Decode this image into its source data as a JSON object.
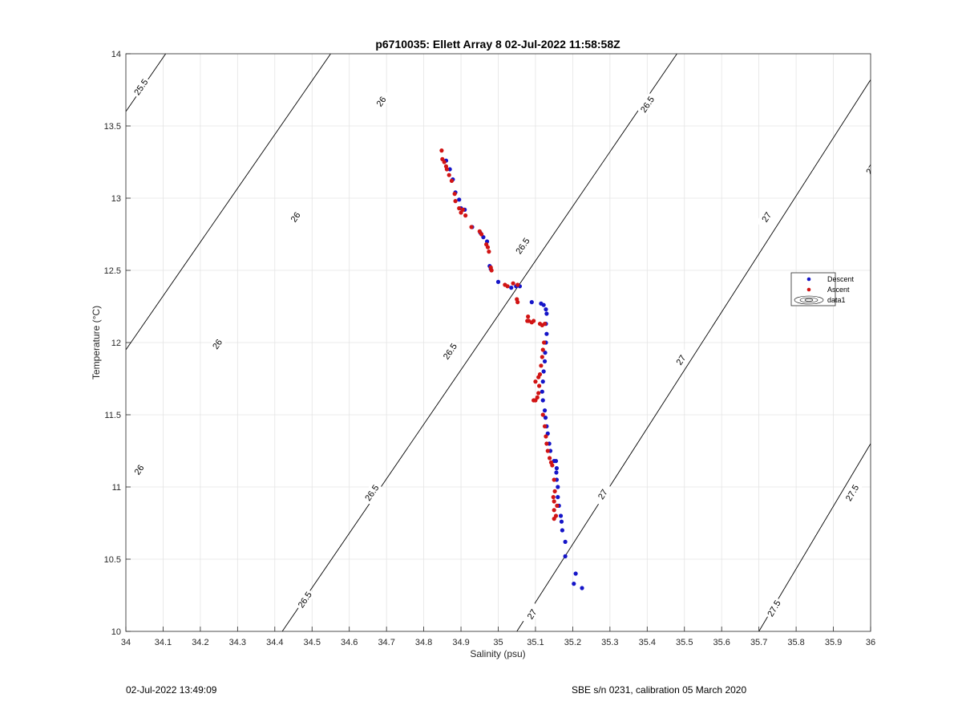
{
  "chart_data": {
    "type": "scatter",
    "title": "p6710035: Ellett Array 8 02-Jul-2022 11:58:58Z",
    "xlabel": "Salinity (psu)",
    "ylabel": "Temperature (°C)",
    "xlim": [
      34,
      36
    ],
    "ylim": [
      10,
      14
    ],
    "xticks": [
      "34",
      "34.1",
      "34.2",
      "34.3",
      "34.4",
      "34.5",
      "34.6",
      "34.7",
      "34.8",
      "34.9",
      "35",
      "35.1",
      "35.2",
      "35.3",
      "35.4",
      "35.5",
      "35.6",
      "35.7",
      "35.8",
      "35.9",
      "36"
    ],
    "yticks": [
      "10",
      "10.5",
      "11",
      "11.5",
      "12",
      "12.5",
      "13",
      "13.5",
      "14"
    ],
    "grid": true,
    "legend": {
      "placement": "right",
      "entries": [
        {
          "name": "Descent",
          "color": "#1515c8",
          "kind": "dot"
        },
        {
          "name": "Ascent",
          "color": "#d11414",
          "kind": "dot"
        },
        {
          "name": "data1",
          "color": "#000000",
          "kind": "contour"
        }
      ]
    },
    "series": [
      {
        "name": "Descent",
        "color": "#1515c8",
        "points": [
          [
            35.225,
            10.3
          ],
          [
            35.203,
            10.33
          ],
          [
            35.208,
            10.4
          ],
          [
            35.18,
            10.52
          ],
          [
            35.18,
            10.62
          ],
          [
            35.172,
            10.7
          ],
          [
            35.17,
            10.76
          ],
          [
            35.168,
            10.8
          ],
          [
            35.163,
            10.87
          ],
          [
            35.16,
            10.93
          ],
          [
            35.16,
            11.0
          ],
          [
            35.157,
            11.05
          ],
          [
            35.156,
            11.1
          ],
          [
            35.157,
            11.13
          ],
          [
            35.155,
            11.18
          ],
          [
            35.15,
            11.18
          ],
          [
            35.14,
            11.25
          ],
          [
            35.137,
            11.3
          ],
          [
            35.133,
            11.37
          ],
          [
            35.13,
            11.42
          ],
          [
            35.127,
            11.48
          ],
          [
            35.125,
            11.53
          ],
          [
            35.12,
            11.6
          ],
          [
            35.118,
            11.66
          ],
          [
            35.12,
            11.73
          ],
          [
            35.122,
            11.8
          ],
          [
            35.125,
            11.87
          ],
          [
            35.126,
            11.93
          ],
          [
            35.128,
            12.0
          ],
          [
            35.13,
            12.06
          ],
          [
            35.128,
            12.13
          ],
          [
            35.13,
            12.2
          ],
          [
            35.128,
            12.23
          ],
          [
            35.122,
            12.26
          ],
          [
            35.115,
            12.27
          ],
          [
            35.09,
            12.28
          ],
          [
            35.058,
            12.39
          ],
          [
            35.048,
            12.39
          ],
          [
            35.035,
            12.38
          ],
          [
            35.0,
            12.42
          ],
          [
            34.98,
            12.51
          ],
          [
            34.977,
            12.53
          ],
          [
            34.97,
            12.7
          ],
          [
            34.96,
            12.73
          ],
          [
            34.952,
            12.76
          ],
          [
            34.93,
            12.8
          ],
          [
            34.91,
            12.92
          ],
          [
            34.9,
            12.93
          ],
          [
            34.895,
            12.99
          ],
          [
            34.885,
            13.04
          ],
          [
            34.878,
            13.13
          ],
          [
            34.87,
            13.2
          ],
          [
            34.86,
            13.26
          ]
        ]
      },
      {
        "name": "Ascent",
        "color": "#d11414",
        "points": [
          [
            34.848,
            13.33
          ],
          [
            34.85,
            13.27
          ],
          [
            34.855,
            13.25
          ],
          [
            34.86,
            13.22
          ],
          [
            34.862,
            13.2
          ],
          [
            34.868,
            13.16
          ],
          [
            34.875,
            13.12
          ],
          [
            34.883,
            13.03
          ],
          [
            34.885,
            12.98
          ],
          [
            34.895,
            12.93
          ],
          [
            34.905,
            12.92
          ],
          [
            34.9,
            12.9
          ],
          [
            34.912,
            12.88
          ],
          [
            34.928,
            12.8
          ],
          [
            34.95,
            12.77
          ],
          [
            34.955,
            12.75
          ],
          [
            34.968,
            12.68
          ],
          [
            34.972,
            12.66
          ],
          [
            34.975,
            12.63
          ],
          [
            34.98,
            12.52
          ],
          [
            34.982,
            12.5
          ],
          [
            35.018,
            12.4
          ],
          [
            35.025,
            12.39
          ],
          [
            35.04,
            12.41
          ],
          [
            35.052,
            12.4
          ],
          [
            35.05,
            12.3
          ],
          [
            35.052,
            12.28
          ],
          [
            35.08,
            12.18
          ],
          [
            35.078,
            12.15
          ],
          [
            35.082,
            12.15
          ],
          [
            35.09,
            12.14
          ],
          [
            35.095,
            12.15
          ],
          [
            35.112,
            12.13
          ],
          [
            35.118,
            12.12
          ],
          [
            35.125,
            12.13
          ],
          [
            35.123,
            12.0
          ],
          [
            35.12,
            11.95
          ],
          [
            35.118,
            11.9
          ],
          [
            35.115,
            11.84
          ],
          [
            35.112,
            11.78
          ],
          [
            35.108,
            11.76
          ],
          [
            35.1,
            11.73
          ],
          [
            35.11,
            11.7
          ],
          [
            35.108,
            11.65
          ],
          [
            35.105,
            11.62
          ],
          [
            35.1,
            11.6
          ],
          [
            35.095,
            11.6
          ],
          [
            35.12,
            11.5
          ],
          [
            35.125,
            11.42
          ],
          [
            35.128,
            11.35
          ],
          [
            35.13,
            11.3
          ],
          [
            35.133,
            11.25
          ],
          [
            35.138,
            11.2
          ],
          [
            35.142,
            11.17
          ],
          [
            35.145,
            11.15
          ],
          [
            35.15,
            11.05
          ],
          [
            35.152,
            10.97
          ],
          [
            35.148,
            10.93
          ],
          [
            35.15,
            10.9
          ],
          [
            35.158,
            10.87
          ],
          [
            35.15,
            10.84
          ],
          [
            35.155,
            10.8
          ],
          [
            35.15,
            10.78
          ]
        ]
      }
    ],
    "isopycnals": [
      {
        "label": "25.5",
        "line": [
          [
            34.0,
            13.6
          ],
          [
            34.107,
            14.0
          ]
        ],
        "labels_at": [
          [
            34.04,
            13.77
          ]
        ]
      },
      {
        "label": "26",
        "line": [
          [
            34.0,
            11.95
          ],
          [
            34.55,
            14.0
          ]
        ],
        "labels_at": [
          [
            34.035,
            11.12
          ],
          [
            34.245,
            11.99
          ],
          [
            34.455,
            12.87
          ],
          [
            34.685,
            13.67
          ]
        ]
      },
      {
        "label": "26.5",
        "line": [
          [
            34.42,
            10.0
          ],
          [
            35.48,
            14.0
          ]
        ],
        "labels_at": [
          [
            34.48,
            10.22
          ],
          [
            34.66,
            10.96
          ],
          [
            34.87,
            11.94
          ],
          [
            35.065,
            12.67
          ],
          [
            35.4,
            13.65
          ]
        ]
      },
      {
        "label": "27",
        "line": [
          [
            35.05,
            10.0
          ],
          [
            36.0,
            13.82
          ]
        ],
        "labels_at": [
          [
            35.09,
            10.12
          ],
          [
            35.28,
            10.95
          ],
          [
            35.49,
            11.88
          ],
          [
            35.72,
            12.87
          ],
          [
            36.0,
            13.2
          ]
        ]
      },
      {
        "label": "27.5",
        "line": [
          [
            35.7,
            10.0
          ],
          [
            36.0,
            11.3
          ]
        ],
        "labels_at": [
          [
            35.74,
            10.16
          ],
          [
            35.95,
            10.96
          ]
        ]
      }
    ]
  },
  "footer": {
    "left": "02-Jul-2022 13:49:09",
    "right": "SBE s/n 0231, calibration 05 March 2020"
  }
}
